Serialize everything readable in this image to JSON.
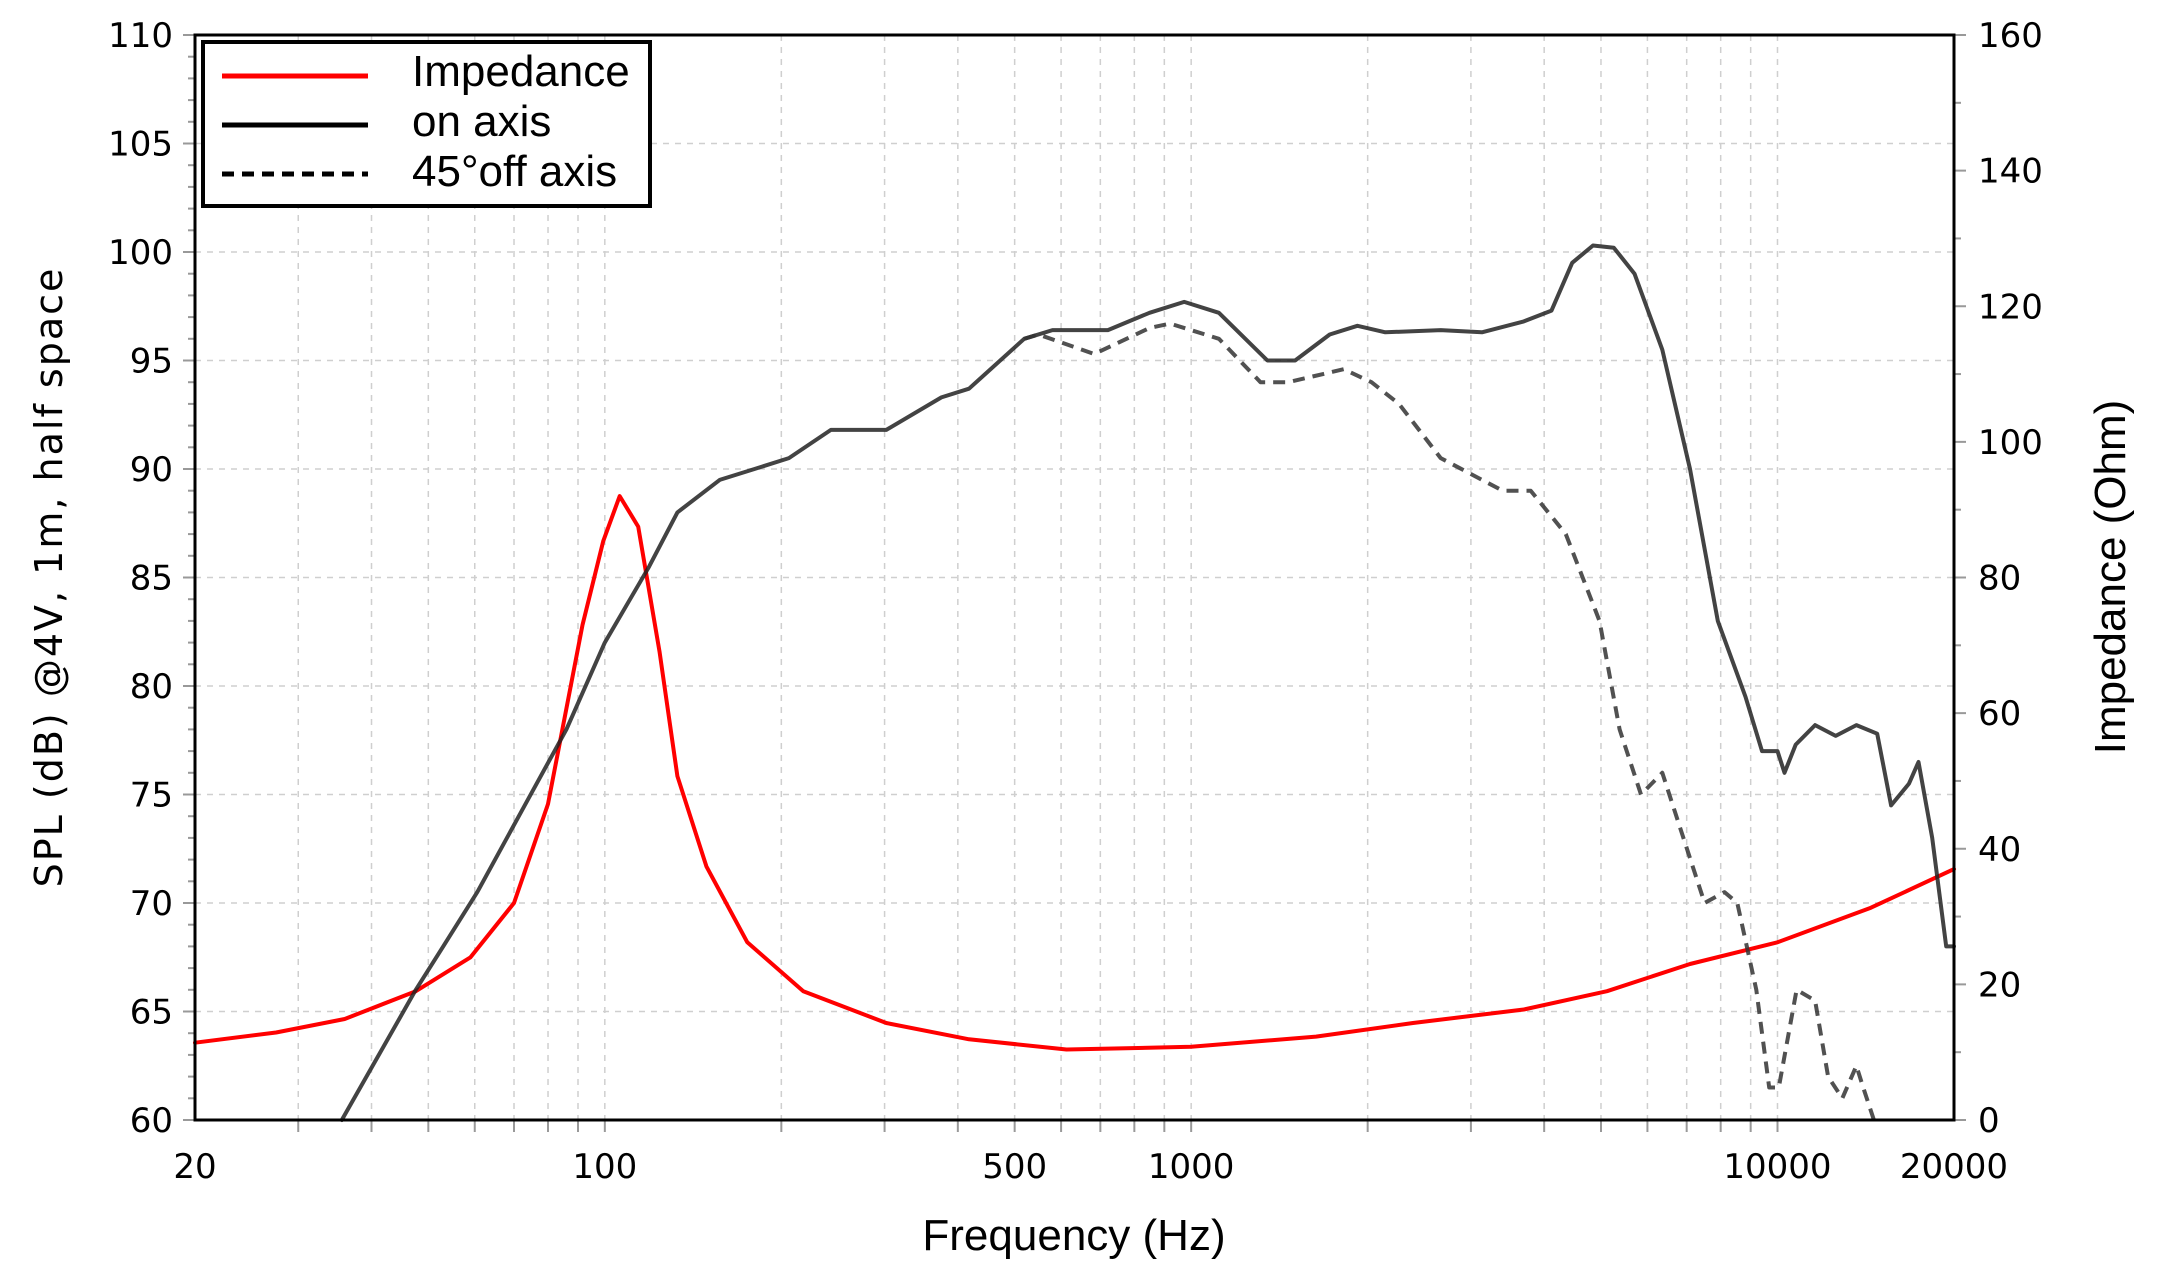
{
  "chart_data": {
    "type": "line",
    "title": "",
    "xlabel": "Frequency (Hz)",
    "ylabel": "SPL (dB) @4V, 1m, half space",
    "y2label": "Impedance (Ohm)",
    "xscale": "log",
    "xlim": [
      20,
      20000
    ],
    "ylim": [
      60,
      110
    ],
    "y2lim": [
      0,
      160
    ],
    "x_ticks": [
      "20",
      "100",
      "500",
      "1000",
      "10000",
      "20000"
    ],
    "y_ticks": [
      "60",
      "65",
      "70",
      "75",
      "80",
      "85",
      "90",
      "95",
      "100",
      "105",
      "110"
    ],
    "y2_ticks": [
      "0",
      "20",
      "40",
      "60",
      "80",
      "100",
      "120",
      "140",
      "160"
    ],
    "grid": true,
    "legend_position": "top-left",
    "series": [
      {
        "name": "Impedance",
        "axis": "right",
        "color": "#ff0000",
        "style": "solid",
        "x": [
          20,
          27.5,
          36,
          47.6,
          59,
          70,
          80,
          91.6,
          99.4,
          106,
          114,
          124,
          133,
          149,
          175,
          218,
          302,
          418,
          613,
          1000,
          1633,
          2390,
          3693,
          5120,
          7092,
          10000,
          14430,
          20000
        ],
        "y": [
          11.4,
          12.9,
          14.9,
          19,
          24,
          32,
          46.6,
          73,
          85.4,
          92,
          87.5,
          69,
          50.7,
          37.4,
          26.2,
          19,
          14.3,
          11.9,
          10.4,
          10.8,
          12.3,
          14.3,
          16.3,
          19,
          23,
          26.2,
          31.3,
          37
        ]
      },
      {
        "name": "on axis",
        "axis": "left",
        "color": "#222222",
        "style": "solid",
        "x": [
          35.6,
          47.6,
          53,
          60.6,
          73,
          86,
          100,
          119,
          133,
          157,
          180,
          206,
          243,
          302,
          375,
          418,
          519,
          580,
          721,
          849,
          973,
          1115,
          1349,
          1504,
          1723,
          1921,
          2143,
          2664,
          3133,
          3693,
          4116,
          4466,
          4846,
          5258,
          5704,
          6360,
          7092,
          7910,
          8820,
          9410,
          10000,
          10280,
          10740,
          11590,
          12570,
          13630,
          14790,
          15620,
          16760,
          17400,
          18360,
          19400,
          20000
        ],
        "y": [
          60,
          66,
          68,
          70.5,
          74.5,
          78,
          82,
          85.5,
          88,
          89.5,
          90,
          90.5,
          91.8,
          91.8,
          93.3,
          93.7,
          96,
          96.4,
          96.4,
          97.2,
          97.7,
          97.2,
          95,
          95,
          96.2,
          96.6,
          96.3,
          96.4,
          96.3,
          96.8,
          97.3,
          99.5,
          100.3,
          100.2,
          99,
          95.5,
          90,
          83,
          79.5,
          77,
          77,
          76,
          77.3,
          78.2,
          77.7,
          78.2,
          77.8,
          74.5,
          75.5,
          76.5,
          73,
          68,
          68
        ]
      },
      {
        "name": "45°off axis",
        "axis": "left",
        "color": "#333333",
        "style": "dashed",
        "x": [
          519,
          549,
          683,
          849,
          921,
          1115,
          1313,
          1463,
          1820,
          2030,
          2262,
          2664,
          3133,
          3399,
          3794,
          4354,
          4970,
          5380,
          5850,
          6360,
          6910,
          7510,
          8120,
          8540,
          9200,
          9680,
          10050,
          10780,
          11590,
          12200,
          12900,
          13630,
          14000,
          14600
        ],
        "y": [
          96,
          96.2,
          95.3,
          96.5,
          96.7,
          96,
          94,
          94,
          94.6,
          94,
          93,
          90.5,
          89.5,
          89,
          89,
          87,
          83,
          78,
          75,
          76,
          73,
          70,
          70.5,
          70,
          66,
          61.5,
          61.5,
          66,
          65.5,
          62,
          61,
          62.5,
          61.5,
          60
        ]
      }
    ]
  }
}
